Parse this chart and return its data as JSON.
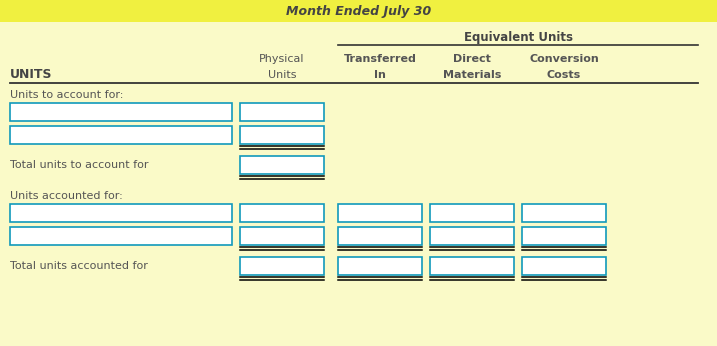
{
  "bg_color": "#FAFAC8",
  "header_bg": "#F0F040",
  "title": "Month Ended July 30",
  "title_color": "#444444",
  "equiv_units_label": "Equivalent Units",
  "section1_label": "Units to account for:",
  "section2_label": "Units accounted for:",
  "total1_label": "Total units to account for",
  "total2_label": "Total units accounted for",
  "units_label": "UNITS",
  "col1_hdr1": "Physical",
  "col1_hdr2": "Units",
  "col2_hdr1": "Transferred",
  "col2_hdr2": "In",
  "col3_hdr1": "Direct",
  "col3_hdr2": "Materials",
  "col4_hdr1": "Conversion",
  "col4_hdr2": "Costs",
  "box_color": "#1199BB",
  "box_fill": "#FFFFFF",
  "text_color": "#555555",
  "bold_color": "#444444",
  "line_color": "#333333"
}
